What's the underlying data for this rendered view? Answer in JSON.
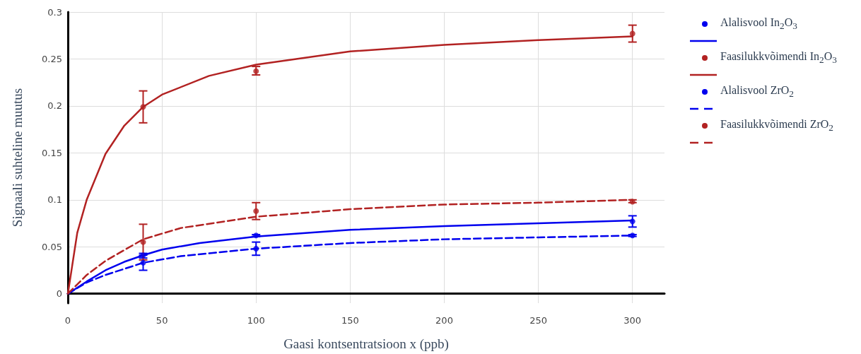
{
  "chart_data": {
    "type": "scatter",
    "xlabel": "Gaasi kontsentratsioon x (ppb)",
    "ylabel": "Signaali suhteline muutus",
    "xlim": [
      0,
      317
    ],
    "xticks": [
      0,
      50,
      100,
      150,
      200,
      250,
      300
    ],
    "ylim": [
      -0.01,
      0.3
    ],
    "yticks": [
      0,
      0.05,
      0.1,
      0.15,
      0.2,
      0.25,
      0.3
    ],
    "grid": true,
    "legend": "top right",
    "marker": "circle",
    "series": [
      {
        "name": "Alalisvool In$_{2}$O$_{3}$",
        "color": "#0000ee",
        "x": [
          40,
          100,
          300
        ],
        "values": [
          0.041,
          0.062,
          0.077
        ],
        "errors": [
          [
            0.038,
            0.043
          ],
          [
            0.061,
            0.063
          ],
          [
            0.071,
            0.083
          ]
        ]
      },
      {
        "type": "line",
        "color": "#0000ee",
        "line_style": "solid",
        "marker": "none",
        "x": [
          0,
          10,
          20,
          30,
          40,
          50,
          70,
          100,
          150,
          200,
          250,
          300
        ],
        "values": [
          0,
          0.013,
          0.025,
          0.034,
          0.041,
          0.047,
          0.054,
          0.061,
          0.068,
          0.072,
          0.075,
          0.078
        ]
      },
      {
        "name": "Faasilukkvõimendi In$_{2}$O$_{3}$",
        "color": "#b22222",
        "x": [
          40,
          100,
          300
        ],
        "values": [
          0.199,
          0.237,
          0.277
        ],
        "errors": [
          [
            0.182,
            0.216
          ],
          [
            0.233,
            0.242
          ],
          [
            0.268,
            0.286
          ]
        ]
      },
      {
        "type": "line",
        "color": "#b22222",
        "line_style": "solid",
        "marker": "none",
        "x": [
          0,
          5,
          10,
          20,
          30,
          40,
          50,
          75,
          100,
          150,
          200,
          250,
          300
        ],
        "values": [
          0,
          0.065,
          0.1,
          0.149,
          0.179,
          0.199,
          0.212,
          0.232,
          0.244,
          0.258,
          0.265,
          0.27,
          0.274
        ]
      },
      {
        "name": "Alalisvool ZrO$_{2}$",
        "color": "#0000ee",
        "x": [
          40,
          100,
          300
        ],
        "values": [
          0.033,
          0.048,
          0.062
        ],
        "errors": [
          [
            0.025,
            0.041
          ],
          [
            0.041,
            0.055
          ],
          [
            0.061,
            0.063
          ]
        ]
      },
      {
        "type": "line",
        "color": "#0000ee",
        "line_style": "dashed",
        "marker": "none",
        "x": [
          0,
          10,
          20,
          40,
          60,
          100,
          150,
          200,
          250,
          300
        ],
        "values": [
          0,
          0.012,
          0.02,
          0.033,
          0.04,
          0.048,
          0.054,
          0.058,
          0.06,
          0.062
        ]
      },
      {
        "name": "Faasilukkvõimendi ZrO$_{2}$",
        "color": "#b22222",
        "x": [
          40,
          100,
          300
        ],
        "values": [
          0.055,
          0.088,
          0.098
        ],
        "errors": [
          [
            0.036,
            0.074
          ],
          [
            0.079,
            0.097
          ],
          [
            0.097,
            0.1
          ]
        ]
      },
      {
        "type": "line",
        "color": "#b22222",
        "line_style": "dashed",
        "marker": "none",
        "x": [
          0,
          10,
          20,
          40,
          60,
          100,
          150,
          200,
          250,
          300
        ],
        "values": [
          0,
          0.02,
          0.035,
          0.058,
          0.07,
          0.082,
          0.09,
          0.095,
          0.097,
          0.1
        ]
      }
    ]
  }
}
